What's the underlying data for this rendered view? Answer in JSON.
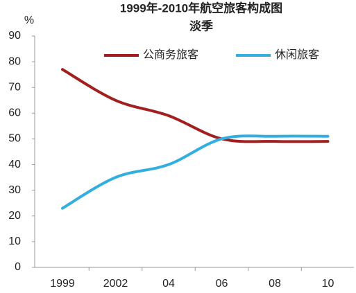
{
  "chart_data": {
    "type": "line",
    "title": "1999年-2010年航空旅客构成图",
    "subtitle": "淡季",
    "y_label": "%",
    "categories": [
      "1999",
      "2002",
      "04",
      "06",
      "08",
      "10"
    ],
    "series": [
      {
        "name": "公商务旅客",
        "color": "#a31f1f",
        "values": [
          77,
          65,
          59,
          50,
          49,
          49
        ]
      },
      {
        "name": "休闲旅客",
        "color": "#33aee0",
        "values": [
          23,
          35,
          40,
          50,
          51,
          51
        ]
      }
    ],
    "ylim": [
      0,
      90
    ],
    "yticks": [
      0,
      10,
      20,
      30,
      40,
      50,
      60,
      70,
      80,
      90
    ],
    "grid": false,
    "legend": "top"
  }
}
